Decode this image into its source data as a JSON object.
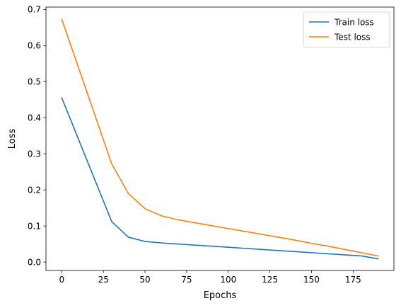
{
  "chart_data": {
    "type": "line",
    "title": "",
    "xlabel": "Epochs",
    "ylabel": "Loss",
    "xlim": [
      -9.5,
      199.5
    ],
    "ylim": [
      -0.0233,
      0.7066
    ],
    "xticks": [
      0,
      25,
      50,
      75,
      100,
      125,
      150,
      175
    ],
    "yticks": [
      0.0,
      0.1,
      0.2,
      0.3,
      0.4,
      0.5,
      0.6,
      0.7
    ],
    "xtick_labels": [
      "0",
      "25",
      "50",
      "75",
      "100",
      "125",
      "150",
      "175"
    ],
    "ytick_labels": [
      "0.0",
      "0.1",
      "0.2",
      "0.3",
      "0.4",
      "0.5",
      "0.6",
      "0.7"
    ],
    "grid": false,
    "legend_position": "top-right",
    "series": [
      {
        "name": "Train loss",
        "color": "#1f77b4",
        "x": [
          0,
          30,
          40,
          50,
          60,
          70,
          80,
          90,
          100,
          110,
          120,
          130,
          140,
          150,
          160,
          170,
          180,
          190
        ],
        "y": [
          0.455,
          0.112,
          0.069,
          0.057,
          0.053,
          0.05,
          0.047,
          0.044,
          0.041,
          0.038,
          0.035,
          0.032,
          0.029,
          0.026,
          0.023,
          0.02,
          0.017,
          0.009
        ]
      },
      {
        "name": "Test loss",
        "color": "#ff7f0e",
        "x": [
          0,
          30,
          40,
          50,
          60,
          70,
          80,
          90,
          100,
          110,
          120,
          130,
          140,
          150,
          160,
          170,
          180,
          190
        ],
        "y": [
          0.673,
          0.272,
          0.19,
          0.148,
          0.128,
          0.117,
          0.109,
          0.101,
          0.093,
          0.085,
          0.077,
          0.069,
          0.061,
          0.052,
          0.044,
          0.035,
          0.026,
          0.017
        ]
      }
    ]
  }
}
